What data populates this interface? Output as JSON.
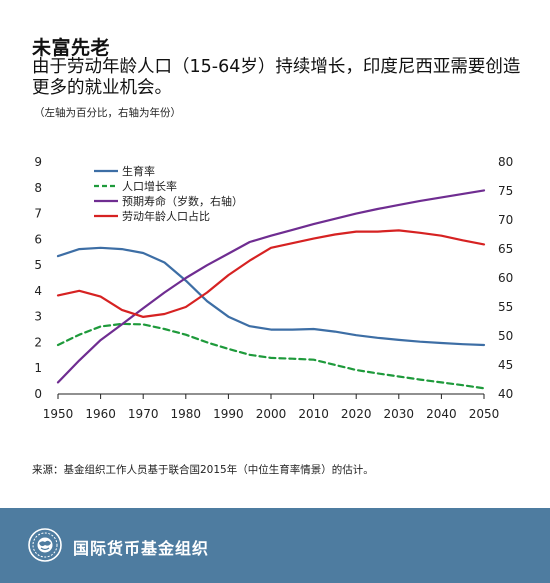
{
  "header": {
    "title": "未富先老",
    "subtitle": "由于劳动年龄人口（15-64岁）持续增长，印度尼西亚需要创造更多的就业机会。",
    "note": "（左轴为百分比，右轴为年份）"
  },
  "source": "来源：基金组织工作人员基于联合国2015年（中位生育率情景）的估计。",
  "footer": {
    "org_name": "国际货币基金组织",
    "logo_icon": "imf-globe-seal-icon"
  },
  "chart_data": {
    "type": "line",
    "title": "",
    "xlabel": "",
    "ylabel_left": "",
    "ylabel_right": "",
    "x": [
      1950,
      1955,
      1960,
      1965,
      1970,
      1975,
      1980,
      1985,
      1990,
      1995,
      2000,
      2005,
      2010,
      2015,
      2020,
      2025,
      2030,
      2035,
      2040,
      2045,
      2050
    ],
    "xticks": [
      1950,
      1960,
      1970,
      1980,
      1990,
      2000,
      2010,
      2020,
      2030,
      2040,
      2050
    ],
    "xlim": [
      1950,
      2050
    ],
    "ylim_left": [
      0,
      9
    ],
    "yticks_left": [
      0,
      1,
      2,
      3,
      4,
      5,
      6,
      7,
      8,
      9
    ],
    "ylim_right": [
      40,
      80
    ],
    "yticks_right": [
      40,
      45,
      50,
      55,
      60,
      65,
      70,
      75,
      80
    ],
    "grid": false,
    "legend_position": "top-left",
    "series": [
      {
        "name": "生育率",
        "axis": "left",
        "color": "#3d6ea5",
        "dash": "solid",
        "values": [
          5.35,
          5.62,
          5.67,
          5.62,
          5.47,
          5.1,
          4.4,
          3.6,
          3.0,
          2.63,
          2.5,
          2.5,
          2.52,
          2.42,
          2.28,
          2.18,
          2.1,
          2.03,
          1.98,
          1.93,
          1.9
        ]
      },
      {
        "name": "人口增长率",
        "axis": "left",
        "color": "#1e9a3b",
        "dash": "dashed",
        "values": [
          1.9,
          2.3,
          2.62,
          2.72,
          2.7,
          2.52,
          2.3,
          2.0,
          1.75,
          1.52,
          1.4,
          1.37,
          1.33,
          1.13,
          0.93,
          0.8,
          0.68,
          0.56,
          0.45,
          0.34,
          0.22
        ]
      },
      {
        "name": "预期寿命（岁数，右轴）",
        "axis": "right",
        "color": "#6f2d91",
        "dash": "solid",
        "values": [
          42.0,
          45.8,
          49.3,
          52.0,
          54.8,
          57.5,
          60.0,
          62.2,
          64.2,
          66.2,
          67.3,
          68.3,
          69.3,
          70.2,
          71.1,
          71.9,
          72.6,
          73.3,
          73.9,
          74.5,
          75.1
        ]
      },
      {
        "name": "劳动年龄人口占比",
        "axis": "right",
        "color": "#d62222",
        "dash": "solid",
        "values": [
          57.0,
          57.8,
          56.8,
          54.5,
          53.3,
          53.8,
          55.0,
          57.5,
          60.5,
          63.0,
          65.2,
          66.0,
          66.8,
          67.5,
          68.0,
          68.0,
          68.2,
          67.8,
          67.3,
          66.5,
          65.8
        ]
      }
    ]
  }
}
